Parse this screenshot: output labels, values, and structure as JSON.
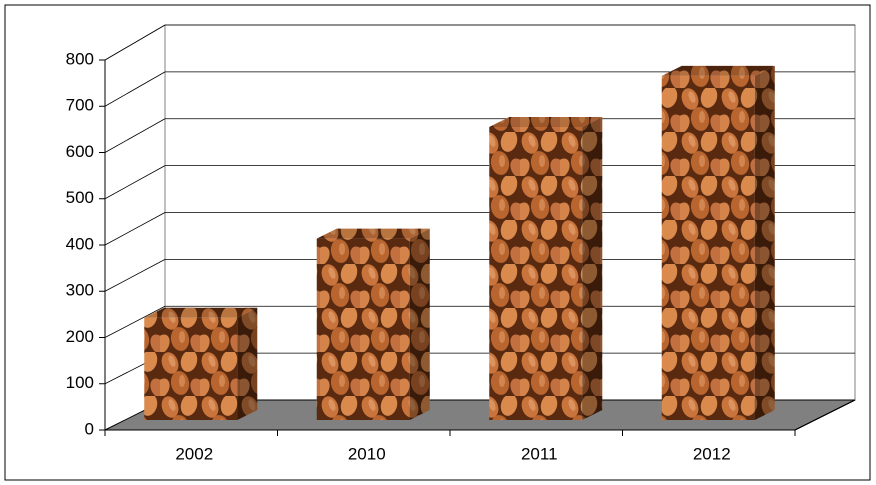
{
  "chart_data": {
    "type": "bar3d",
    "categories": [
      "2002",
      "2010",
      "2011",
      "2012"
    ],
    "values": [
      220,
      390,
      630,
      740
    ],
    "ylim": [
      0,
      800
    ],
    "yticks": [
      0,
      100,
      200,
      300,
      400,
      500,
      600,
      700,
      800
    ],
    "grid": true,
    "floor_color": "#808080"
  }
}
